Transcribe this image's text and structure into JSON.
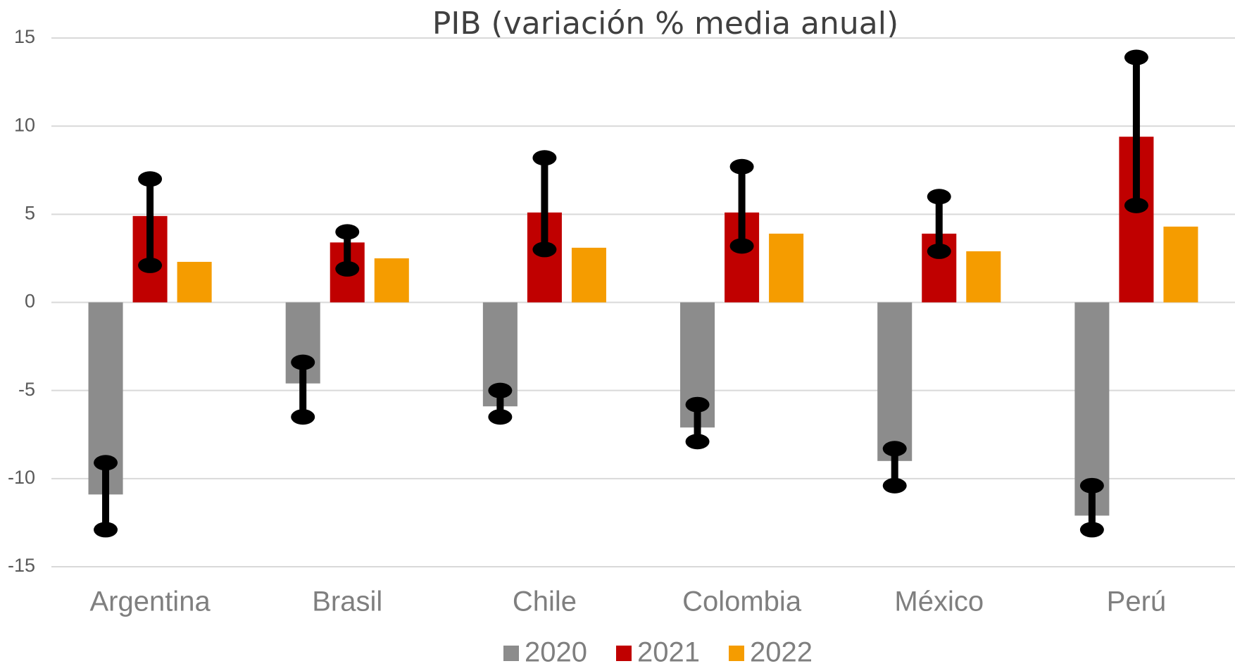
{
  "chart_data": {
    "type": "bar",
    "title": "PIB (variación % media anual)",
    "categories": [
      "Argentina",
      "Brasil",
      "Chile",
      "Colombia",
      "México",
      "Perú"
    ],
    "series": [
      {
        "name": "2020",
        "color": "#8c8c8c",
        "values": [
          -10.9,
          -4.6,
          -5.9,
          -7.1,
          -9.0,
          -12.1
        ],
        "ranges": [
          [
            -12.9,
            -9.1
          ],
          [
            -6.5,
            -3.4
          ],
          [
            -6.5,
            -5.0
          ],
          [
            -7.9,
            -5.8
          ],
          [
            -10.4,
            -8.3
          ],
          [
            -12.9,
            -10.4
          ]
        ]
      },
      {
        "name": "2021",
        "color": "#c00000",
        "values": [
          4.9,
          3.4,
          5.1,
          5.1,
          3.9,
          9.4
        ],
        "ranges": [
          [
            2.1,
            7.0
          ],
          [
            1.9,
            4.0
          ],
          [
            3.0,
            8.2
          ],
          [
            3.2,
            7.7
          ],
          [
            2.9,
            6.0
          ],
          [
            5.5,
            13.9
          ]
        ]
      },
      {
        "name": "2022",
        "color": "#f59c00",
        "values": [
          2.3,
          2.5,
          3.1,
          3.9,
          2.9,
          4.3
        ]
      }
    ],
    "ylim": [
      -15,
      15
    ],
    "yticks": [
      -15,
      -10,
      -5,
      0,
      5,
      10,
      15
    ],
    "grid": true,
    "legend": "bottom"
  }
}
